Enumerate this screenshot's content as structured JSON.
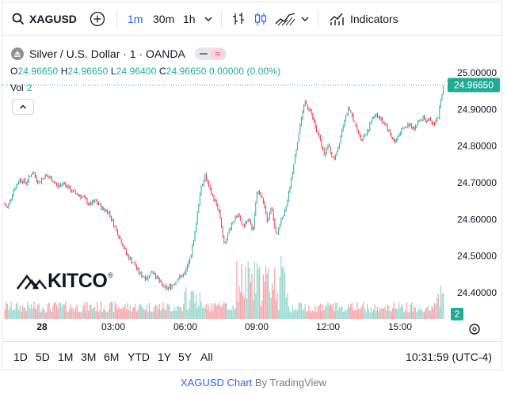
{
  "toolbar": {
    "symbol": "XAGUSD",
    "timeframes": [
      {
        "label": "1m",
        "active": true
      },
      {
        "label": "30m",
        "active": false
      },
      {
        "label": "1h",
        "active": false
      }
    ],
    "indicators_label": "Indicators"
  },
  "legend": {
    "title": "Silver / U.S. Dollar · 1 · OANDA",
    "o_key": "O",
    "o_val": "24.96650",
    "h_key": "H",
    "h_val": "24.96650",
    "l_key": "L",
    "l_val": "24.96400",
    "c_key": "C",
    "c_val": "24.96650",
    "change": "0.00000 (0.00%)",
    "vol_label": "Vol",
    "vol_value": "2"
  },
  "watermark": "KITCO",
  "range_buttons": [
    "1D",
    "5D",
    "1M",
    "3M",
    "6M",
    "YTD",
    "1Y",
    "5Y",
    "All"
  ],
  "clock": "10:31:59 (UTC-4)",
  "footer": {
    "link_text": "XAGUSD Chart",
    "by_text": "By TradingView"
  },
  "colors": {
    "up": "#22ab94",
    "down": "#f23645",
    "accent": "#2962ff"
  },
  "chart_data": {
    "type": "candlestick",
    "x_tick_labels": [
      "28",
      "03:00",
      "06:00",
      "09:00",
      "12:00",
      "15:00"
    ],
    "y_tick_labels": [
      "24.40000",
      "24.50000",
      "24.60000",
      "24.70000",
      "24.80000",
      "24.90000",
      "25.00000"
    ],
    "ylim": [
      24.36,
      25.02
    ],
    "current_price": "24.96650",
    "volume_label": "2",
    "price_path": [
      [
        0,
        24.65
      ],
      [
        6,
        24.63
      ],
      [
        14,
        24.68
      ],
      [
        22,
        24.71
      ],
      [
        30,
        24.7
      ],
      [
        38,
        24.73
      ],
      [
        46,
        24.7
      ],
      [
        54,
        24.72
      ],
      [
        62,
        24.71
      ],
      [
        70,
        24.69
      ],
      [
        78,
        24.7
      ],
      [
        86,
        24.68
      ],
      [
        94,
        24.67
      ],
      [
        102,
        24.66
      ],
      [
        110,
        24.64
      ],
      [
        118,
        24.65
      ],
      [
        126,
        24.63
      ],
      [
        134,
        24.62
      ],
      [
        142,
        24.58
      ],
      [
        150,
        24.54
      ],
      [
        158,
        24.5
      ],
      [
        166,
        24.48
      ],
      [
        174,
        24.45
      ],
      [
        182,
        24.44
      ],
      [
        190,
        24.46
      ],
      [
        198,
        24.43
      ],
      [
        206,
        24.41
      ],
      [
        214,
        24.42
      ],
      [
        222,
        24.44
      ],
      [
        230,
        24.45
      ],
      [
        238,
        24.5
      ],
      [
        244,
        24.58
      ],
      [
        250,
        24.68
      ],
      [
        256,
        24.72
      ],
      [
        262,
        24.68
      ],
      [
        268,
        24.65
      ],
      [
        274,
        24.62
      ],
      [
        280,
        24.53
      ],
      [
        286,
        24.57
      ],
      [
        292,
        24.6
      ],
      [
        298,
        24.61
      ],
      [
        304,
        24.58
      ],
      [
        310,
        24.6
      ],
      [
        316,
        24.57
      ],
      [
        322,
        24.68
      ],
      [
        328,
        24.66
      ],
      [
        334,
        24.6
      ],
      [
        340,
        24.63
      ],
      [
        346,
        24.55
      ],
      [
        352,
        24.6
      ],
      [
        358,
        24.63
      ],
      [
        364,
        24.7
      ],
      [
        370,
        24.78
      ],
      [
        376,
        24.86
      ],
      [
        382,
        24.92
      ],
      [
        388,
        24.9
      ],
      [
        394,
        24.86
      ],
      [
        400,
        24.82
      ],
      [
        406,
        24.78
      ],
      [
        412,
        24.8
      ],
      [
        418,
        24.76
      ],
      [
        424,
        24.8
      ],
      [
        430,
        24.86
      ],
      [
        436,
        24.9
      ],
      [
        442,
        24.88
      ],
      [
        448,
        24.84
      ],
      [
        454,
        24.82
      ],
      [
        460,
        24.84
      ],
      [
        466,
        24.87
      ],
      [
        472,
        24.89
      ],
      [
        478,
        24.87
      ],
      [
        484,
        24.86
      ],
      [
        490,
        24.83
      ],
      [
        496,
        24.81
      ],
      [
        502,
        24.84
      ],
      [
        508,
        24.85
      ],
      [
        514,
        24.86
      ],
      [
        520,
        24.85
      ],
      [
        526,
        24.87
      ],
      [
        532,
        24.88
      ],
      [
        538,
        24.87
      ],
      [
        544,
        24.86
      ],
      [
        550,
        24.88
      ],
      [
        556,
        24.96
      ],
      [
        560,
        24.967
      ]
    ]
  }
}
